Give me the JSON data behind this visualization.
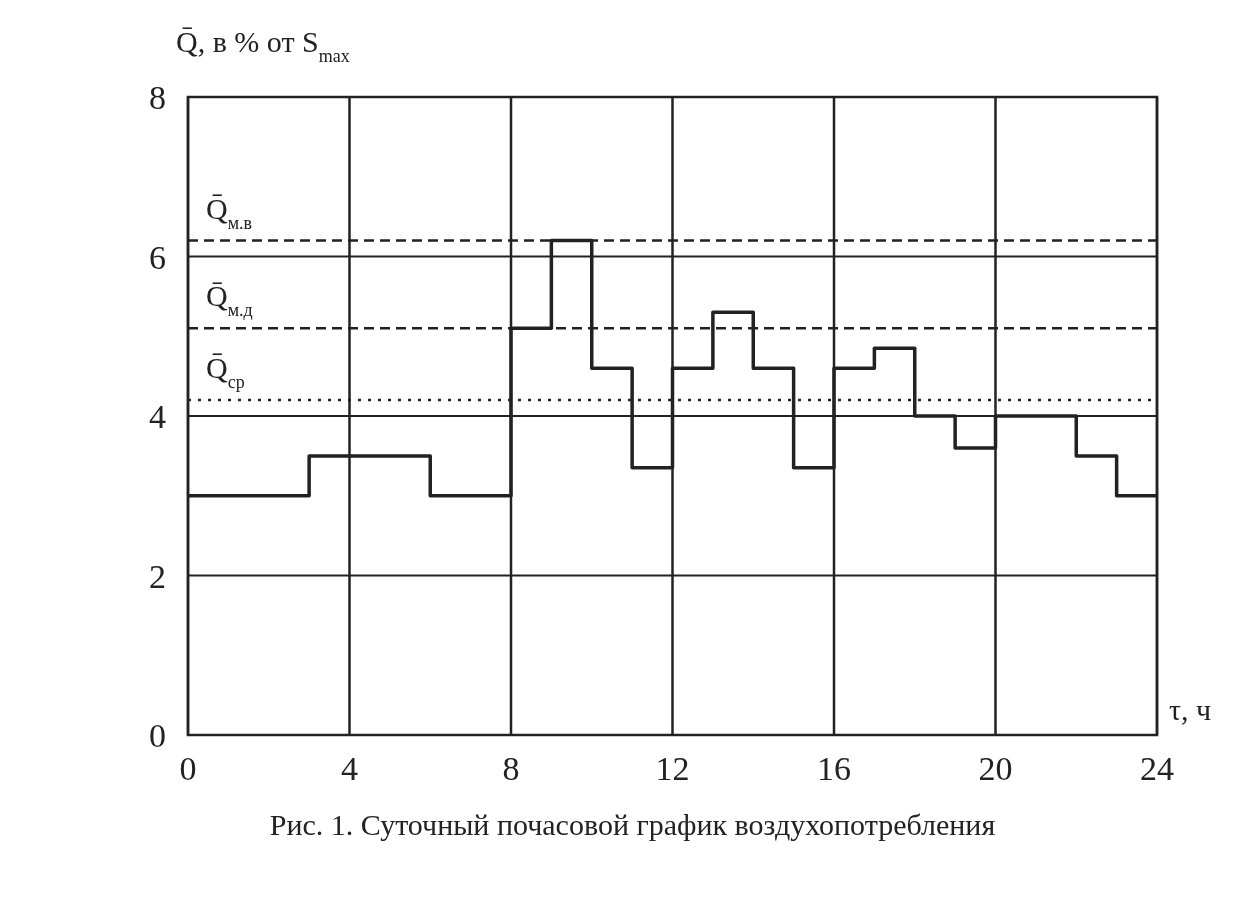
{
  "chart_data": {
    "type": "step",
    "title": "Рис. 1. Суточный почасовой график воздухопотребления",
    "xlabel": "τ, ч",
    "ylabel": "Q̄, в % от S$_{max}$",
    "x": [
      0,
      1,
      2,
      3,
      4,
      5,
      6,
      7,
      8,
      9,
      10,
      11,
      12,
      13,
      14,
      15,
      16,
      17,
      18,
      19,
      20,
      21,
      22,
      23,
      24
    ],
    "series": [
      {
        "color": "#222222",
        "values": [
          3.0,
          3.0,
          3.0,
          3.5,
          3.5,
          3.5,
          3.0,
          3.0,
          5.1,
          6.2,
          4.6,
          3.35,
          4.6,
          5.3,
          4.6,
          3.35,
          4.6,
          4.85,
          4.0,
          3.6,
          4.0,
          4.0,
          3.5,
          3.0,
          3.0
        ]
      }
    ],
    "xlim": [
      0,
      24
    ],
    "xticks": [
      0,
      4,
      8,
      12,
      16,
      20,
      24
    ],
    "ylim": [
      0,
      8
    ],
    "yticks": [
      0,
      2,
      4,
      6,
      8
    ],
    "grid": true,
    "ref_lines": [
      {
        "axis": "y",
        "value": 6.2,
        "label": "Q̄$_{м.в}$",
        "line_style": "dashed",
        "color": "#222222"
      },
      {
        "axis": "y",
        "value": 5.1,
        "label": "Q̄$_{м.д}$",
        "line_style": "dashed",
        "color": "#222222"
      },
      {
        "axis": "y",
        "value": 4.2,
        "label": "Q̄$_{ср}$",
        "line_style": "dotted",
        "color": "#222222"
      }
    ]
  }
}
